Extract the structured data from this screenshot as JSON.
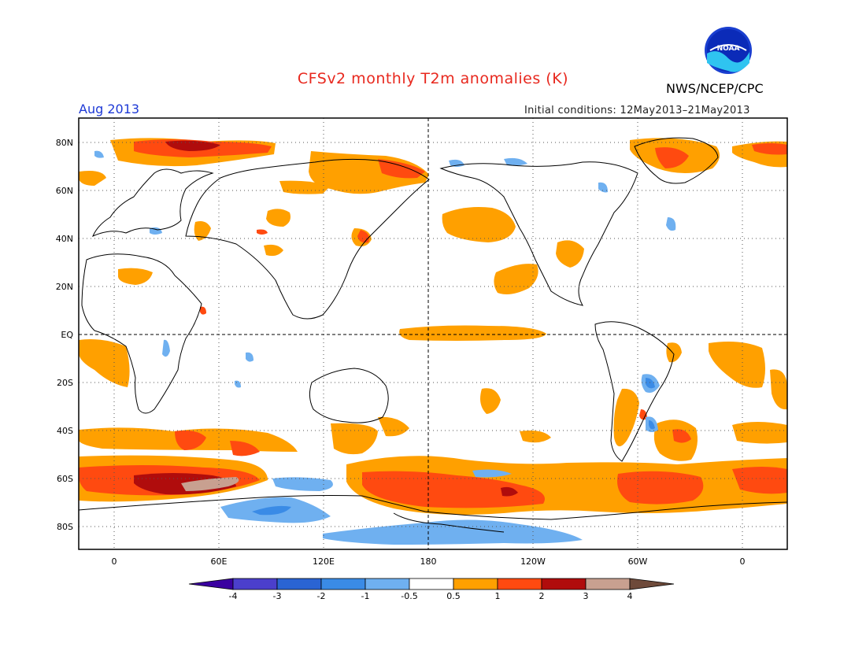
{
  "header": {
    "title": "CFSv2 monthly T2m anomalies (K)",
    "valid_time": "Aug 2013",
    "initial_conditions": "Initial conditions: 12May2013–21May2013",
    "agency": "NWS/NCEP/CPC",
    "logo_text": "NOAA"
  },
  "map": {
    "projection": "cylindrical equidistant",
    "lat_labels": [
      "80N",
      "60N",
      "40N",
      "20N",
      "EQ",
      "20S",
      "40S",
      "60S",
      "80S"
    ],
    "lon_labels": [
      "0",
      "60E",
      "120E",
      "180",
      "120W",
      "60W",
      "0"
    ]
  },
  "colorbar": {
    "labels": [
      "-4",
      "-3",
      "-2",
      "-1",
      "-0.5",
      "0.5",
      "1",
      "2",
      "3",
      "4"
    ],
    "colors": [
      "#3a00a0",
      "#4b3fcc",
      "#2a64d3",
      "#3a8be6",
      "#6fb0f0",
      "#ffffff",
      "#ffa000",
      "#ff4a10",
      "#b00c0c",
      "#c8a090",
      "#6e4a3a"
    ]
  },
  "palette": {
    "pos_05": "#ffa000",
    "pos_1": "#ff4a10",
    "pos_2": "#b00c0c",
    "pos_3": "#c8a090",
    "neg_05": "#6fb0f0",
    "neg_1": "#3a8be6",
    "neg_2": "#2a64d3",
    "title_red": "#e8281e",
    "date_blue": "#1d39d6"
  }
}
